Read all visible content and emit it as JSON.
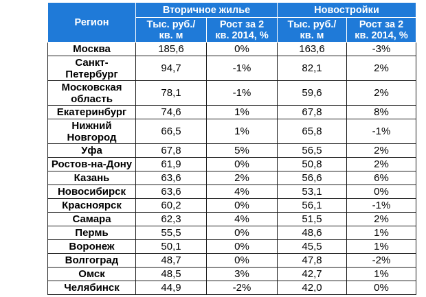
{
  "header": {
    "region": "Регион",
    "secondary_group": "Вторичное жилье",
    "new_group": "Новостройки",
    "price_label_line1": "Тыс. руб./",
    "price_label_line2": "кв. м",
    "growth_label_line1": "Рост за 2",
    "growth_label_line2": "кв. 2014, %"
  },
  "rows": [
    {
      "region": [
        "Москва"
      ],
      "sec_price": "185,6",
      "sec_growth": "0%",
      "new_price": "163,6",
      "new_growth": "-3%"
    },
    {
      "region": [
        "Санкт-",
        "Петербург"
      ],
      "sec_price": "94,7",
      "sec_growth": "-1%",
      "new_price": "82,1",
      "new_growth": "2%"
    },
    {
      "region": [
        "Московская",
        "область"
      ],
      "sec_price": "78,1",
      "sec_growth": "-1%",
      "new_price": "59,6",
      "new_growth": "2%"
    },
    {
      "region": [
        "Екатеринбург"
      ],
      "sec_price": "74,6",
      "sec_growth": "1%",
      "new_price": "67,8",
      "new_growth": "8%"
    },
    {
      "region": [
        "Нижний",
        "Новгород"
      ],
      "sec_price": "66,5",
      "sec_growth": "1%",
      "new_price": "65,8",
      "new_growth": "-1%"
    },
    {
      "region": [
        "Уфа"
      ],
      "sec_price": "67,8",
      "sec_growth": "5%",
      "new_price": "56,5",
      "new_growth": "2%"
    },
    {
      "region": [
        "Ростов-на-Дону"
      ],
      "sec_price": "61,9",
      "sec_growth": "0%",
      "new_price": "50,8",
      "new_growth": "2%"
    },
    {
      "region": [
        "Казань"
      ],
      "sec_price": "63,6",
      "sec_growth": "2%",
      "new_price": "56,6",
      "new_growth": "6%"
    },
    {
      "region": [
        "Новосибирск"
      ],
      "sec_price": "63,6",
      "sec_growth": "4%",
      "new_price": "53,1",
      "new_growth": "0%"
    },
    {
      "region": [
        "Красноярск"
      ],
      "sec_price": "60,2",
      "sec_growth": "0%",
      "new_price": "56,1",
      "new_growth": "-1%"
    },
    {
      "region": [
        "Самара"
      ],
      "sec_price": "62,3",
      "sec_growth": "4%",
      "new_price": "51,5",
      "new_growth": "2%"
    },
    {
      "region": [
        "Пермь"
      ],
      "sec_price": "55,5",
      "sec_growth": "0%",
      "new_price": "48,6",
      "new_growth": "1%"
    },
    {
      "region": [
        "Воронеж"
      ],
      "sec_price": "50,1",
      "sec_growth": "0%",
      "new_price": "45,5",
      "new_growth": "1%"
    },
    {
      "region": [
        "Волгоград"
      ],
      "sec_price": "48,7",
      "sec_growth": "0%",
      "new_price": "47,8",
      "new_growth": "-2%"
    },
    {
      "region": [
        "Омск"
      ],
      "sec_price": "48,5",
      "sec_growth": "3%",
      "new_price": "42,7",
      "new_growth": "1%"
    },
    {
      "region": [
        "Челябинск"
      ],
      "sec_price": "44,9",
      "sec_growth": "-2%",
      "new_price": "42,0",
      "new_growth": "0%"
    }
  ],
  "colors": {
    "header_bg": "#1f7ad8",
    "header_text": "#ffffff",
    "border": "#1a1a1a"
  }
}
